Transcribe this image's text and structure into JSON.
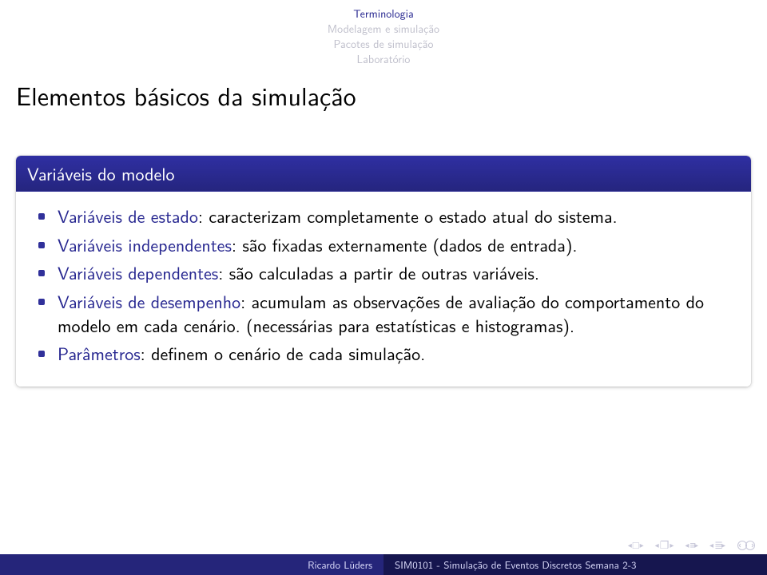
{
  "colors": {
    "structure_dark": "#272790",
    "structure_light": "#c0c0cc",
    "block_title_bg_from": "#2f2fa2",
    "block_title_bg_to": "#25257f",
    "bullet": "#30309a",
    "footer_left_bg": "#25257a",
    "footer_right_bg": "#16164f",
    "footer_text": "#dadafa",
    "nav_symbol": "#c6c6d8"
  },
  "nav": {
    "lines": [
      {
        "text": "Terminologia",
        "current": true
      },
      {
        "text": "Modelagem e simulação",
        "current": false
      },
      {
        "text": "Pacotes de simulação",
        "current": false
      },
      {
        "text": "Laboratório",
        "current": false
      }
    ]
  },
  "title": "Elementos básicos da simulação",
  "block": {
    "title": "Variáveis do modelo",
    "items": [
      {
        "term": "Variáveis de estado",
        "rest": ": caracterizam completamente o estado atual do sistema."
      },
      {
        "term": "Variáveis independentes",
        "rest": ": são fixadas externamente (dados de entrada)."
      },
      {
        "term": "Variáveis dependentes",
        "rest": ": são calculadas a partir de outras variáveis."
      },
      {
        "term": "Variáveis de desempenho",
        "rest": ": acumulam as observações de avaliação do comportamento do modelo em cada cenário. (necessárias para estatísticas e histogramas)."
      },
      {
        "term": "Parâmetros",
        "rest": ": definem o cenário de cada simulação."
      }
    ]
  },
  "footer": {
    "author": "Ricardo Lüders",
    "shorttitle": "SIM0101 - Simulação de Eventos Discretos Semana 2-3"
  }
}
